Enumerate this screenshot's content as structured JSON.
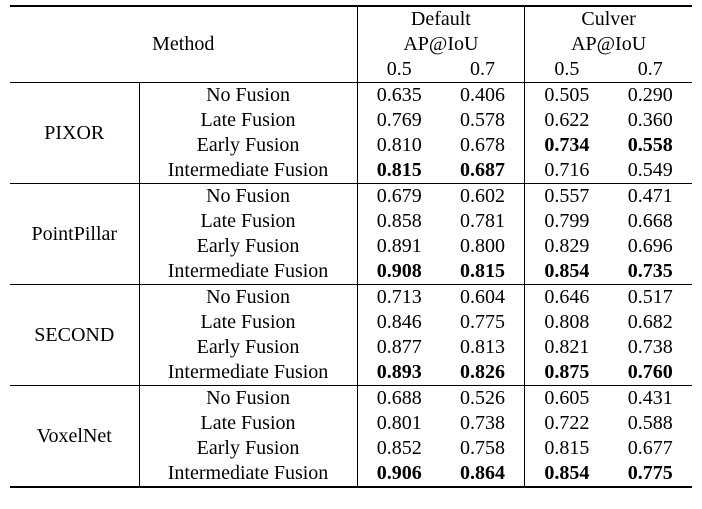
{
  "header": {
    "method_label": "Method",
    "group_default_l1": "Default",
    "group_default_l2": "AP@IoU",
    "group_culver_l1": "Culver",
    "group_culver_l2": "AP@IoU",
    "thresholds": [
      "0.5",
      "0.7",
      "0.5",
      "0.7"
    ]
  },
  "methods": [
    {
      "name": "PIXOR",
      "rows": [
        {
          "fusion": "No Fusion",
          "values": [
            "0.635",
            "0.406",
            "0.505",
            "0.290"
          ],
          "bold": [
            false,
            false,
            false,
            false
          ]
        },
        {
          "fusion": "Late Fusion",
          "values": [
            "0.769",
            "0.578",
            "0.622",
            "0.360"
          ],
          "bold": [
            false,
            false,
            false,
            false
          ]
        },
        {
          "fusion": "Early Fusion",
          "values": [
            "0.810",
            "0.678",
            "0.734",
            "0.558"
          ],
          "bold": [
            false,
            false,
            true,
            true
          ]
        },
        {
          "fusion": "Intermediate Fusion",
          "values": [
            "0.815",
            "0.687",
            "0.716",
            "0.549"
          ],
          "bold": [
            true,
            true,
            false,
            false
          ]
        }
      ]
    },
    {
      "name": "PointPillar",
      "rows": [
        {
          "fusion": "No Fusion",
          "values": [
            "0.679",
            "0.602",
            "0.557",
            "0.471"
          ],
          "bold": [
            false,
            false,
            false,
            false
          ]
        },
        {
          "fusion": "Late Fusion",
          "values": [
            "0.858",
            "0.781",
            "0.799",
            "0.668"
          ],
          "bold": [
            false,
            false,
            false,
            false
          ]
        },
        {
          "fusion": "Early Fusion",
          "values": [
            "0.891",
            "0.800",
            "0.829",
            "0.696"
          ],
          "bold": [
            false,
            false,
            false,
            false
          ]
        },
        {
          "fusion": "Intermediate Fusion",
          "values": [
            "0.908",
            "0.815",
            "0.854",
            "0.735"
          ],
          "bold": [
            true,
            true,
            true,
            true
          ]
        }
      ]
    },
    {
      "name": "SECOND",
      "rows": [
        {
          "fusion": "No Fusion",
          "values": [
            "0.713",
            "0.604",
            "0.646",
            "0.517"
          ],
          "bold": [
            false,
            false,
            false,
            false
          ]
        },
        {
          "fusion": "Late Fusion",
          "values": [
            "0.846",
            "0.775",
            "0.808",
            "0.682"
          ],
          "bold": [
            false,
            false,
            false,
            false
          ]
        },
        {
          "fusion": "Early Fusion",
          "values": [
            "0.877",
            "0.813",
            "0.821",
            "0.738"
          ],
          "bold": [
            false,
            false,
            false,
            false
          ]
        },
        {
          "fusion": "Intermediate Fusion",
          "values": [
            "0.893",
            "0.826",
            "0.875",
            "0.760"
          ],
          "bold": [
            true,
            true,
            true,
            true
          ]
        }
      ]
    },
    {
      "name": "VoxelNet",
      "rows": [
        {
          "fusion": "No Fusion",
          "values": [
            "0.688",
            "0.526",
            "0.605",
            "0.431"
          ],
          "bold": [
            false,
            false,
            false,
            false
          ]
        },
        {
          "fusion": "Late Fusion",
          "values": [
            "0.801",
            "0.738",
            "0.722",
            "0.588"
          ],
          "bold": [
            false,
            false,
            false,
            false
          ]
        },
        {
          "fusion": "Early Fusion",
          "values": [
            "0.852",
            "0.758",
            "0.815",
            "0.677"
          ],
          "bold": [
            false,
            false,
            false,
            false
          ]
        },
        {
          "fusion": "Intermediate Fusion",
          "values": [
            "0.906",
            "0.864",
            "0.854",
            "0.775"
          ],
          "bold": [
            true,
            true,
            true,
            true
          ]
        }
      ]
    }
  ]
}
